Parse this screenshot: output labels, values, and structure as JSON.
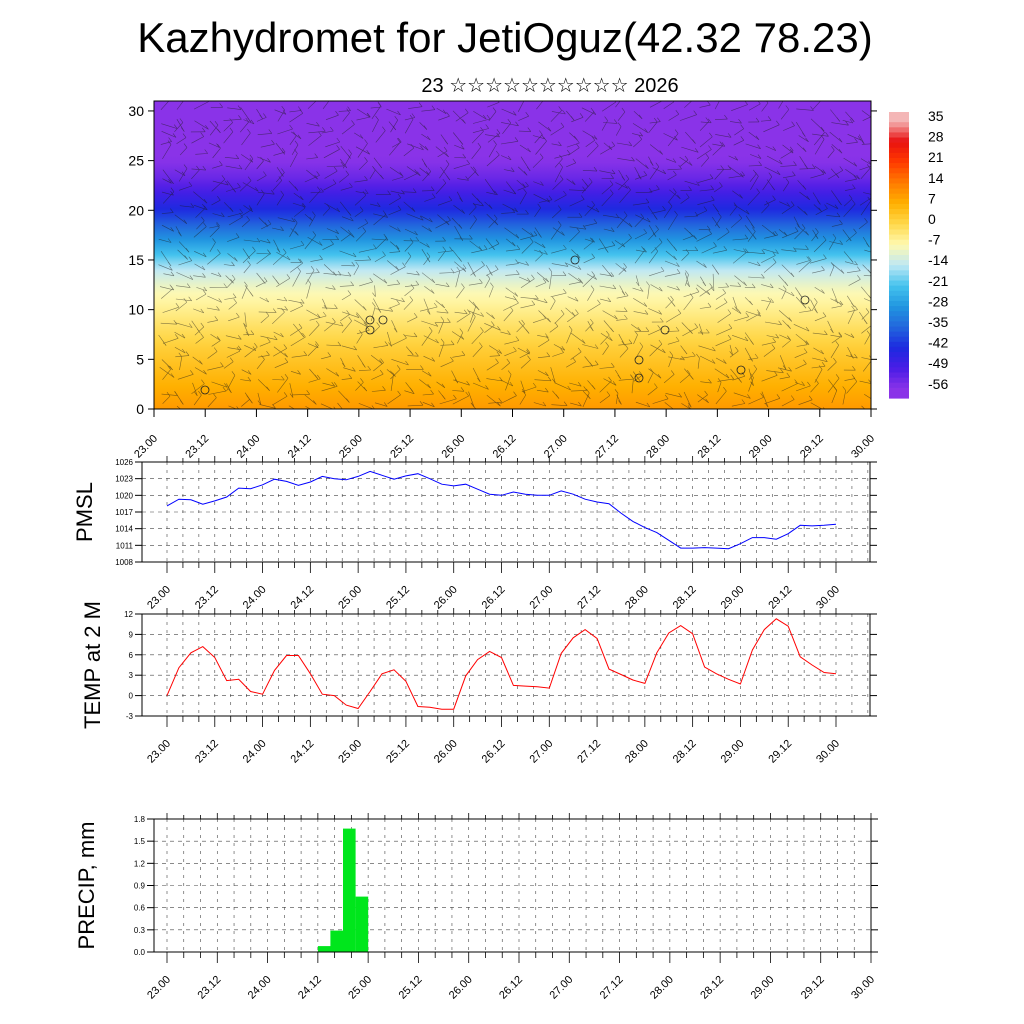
{
  "header": {
    "title": "Kazhydromet for JetiOguz(42.32 78.23)",
    "subtitle": "23 ☆☆☆☆☆☆☆☆☆☆ 2026"
  },
  "chart_data": [
    {
      "type": "heatmap",
      "name": "cross-section",
      "title": "",
      "xlabel": "",
      "ylabel": "",
      "x_tick_labels": [
        "23.00",
        "23.12",
        "24.00",
        "24.12",
        "25.00",
        "25.12",
        "26.00",
        "26.12",
        "27.00",
        "27.12",
        "28.00",
        "28.12",
        "29.00",
        "29.12",
        "30.00"
      ],
      "y_ticks": [
        0,
        5,
        10,
        15,
        20,
        25,
        30
      ],
      "ylim": [
        0,
        31
      ],
      "colorbar": {
        "labels": [
          "35",
          "28",
          "21",
          "14",
          "7",
          "0",
          "-7",
          "-14",
          "-21",
          "-28",
          "-35",
          "-42",
          "-49",
          "-56"
        ],
        "stops": [
          35,
          28,
          21,
          14,
          7,
          0,
          -7,
          -14,
          -21,
          -28,
          -35,
          -42,
          -49,
          -56
        ],
        "colors": [
          "#f4b6b6",
          "#e81010",
          "#ff3a00",
          "#ff7a00",
          "#ffb000",
          "#ffd84a",
          "#fff9b0",
          "#bfe8f4",
          "#44c3ee",
          "#2196e0",
          "#2266dd",
          "#1c2ae0",
          "#4a1ce6",
          "#8a33e8"
        ]
      },
      "temperature_profile": {
        "levels": [
          0,
          3,
          6,
          9,
          12,
          14,
          17,
          20,
          23,
          26,
          31
        ],
        "values": [
          10,
          6,
          2,
          -3,
          -8,
          -14,
          -28,
          -42,
          -52,
          -58,
          -58
        ]
      },
      "circle_markers_x": [
        "23.12",
        "25.00",
        "25.00",
        "25.12",
        "27.00",
        "27.12",
        "27.12",
        "28.00",
        "28.12",
        "29.12"
      ]
    },
    {
      "type": "line",
      "name": "PMSL",
      "ylabel": "PMSL",
      "x_tick_labels": [
        "23.00",
        "23.12",
        "24.00",
        "24.12",
        "25.00",
        "25.12",
        "26.00",
        "26.12",
        "27.00",
        "27.12",
        "28.00",
        "28.12",
        "29.00",
        "29.12",
        "30.00"
      ],
      "y_ticks": [
        1008,
        1011,
        1014,
        1017,
        1020,
        1023,
        1026
      ],
      "ylim": [
        1008,
        1026
      ],
      "series": [
        {
          "name": "PMSL",
          "color": "#0000ff",
          "values": [
            1018.1,
            1019.3,
            1019.2,
            1018.4,
            1019.0,
            1019.7,
            1021.3,
            1021.2,
            1021.9,
            1022.9,
            1022.5,
            1021.8,
            1022.4,
            1023.4,
            1023.0,
            1022.8,
            1023.4,
            1024.3,
            1023.6,
            1022.9,
            1023.5,
            1023.9,
            1023.0,
            1022.0,
            1021.7,
            1022.0,
            1021.1,
            1020.2,
            1020.0,
            1020.6,
            1020.2,
            1020.0,
            1020.0,
            1020.8,
            1020.2,
            1019.3,
            1018.8,
            1018.5,
            1016.8,
            1015.3,
            1014.2,
            1013.3,
            1011.9,
            1010.5,
            1010.5,
            1010.6,
            1010.5,
            1010.4,
            1011.3,
            1012.4,
            1012.4,
            1012.1,
            1013.1,
            1014.6,
            1014.5,
            1014.6,
            1014.8
          ]
        }
      ]
    },
    {
      "type": "line",
      "name": "TEMP at 2 M",
      "ylabel": "TEMP at 2 M",
      "x_tick_labels": [
        "23.00",
        "23.12",
        "24.00",
        "24.12",
        "25.00",
        "25.12",
        "26.00",
        "26.12",
        "27.00",
        "27.12",
        "28.00",
        "28.12",
        "29.00",
        "29.12",
        "30.00"
      ],
      "y_ticks": [
        -3,
        0,
        3,
        6,
        9,
        12
      ],
      "ylim": [
        -3,
        12
      ],
      "series": [
        {
          "name": "TEMP at 2 M",
          "color": "#ff0000",
          "values": [
            0.0,
            4.1,
            6.3,
            7.2,
            5.6,
            2.2,
            2.4,
            0.6,
            0.2,
            3.7,
            5.9,
            5.9,
            3.2,
            0.2,
            0.0,
            -1.4,
            -1.9,
            0.6,
            3.2,
            3.8,
            2.1,
            -1.6,
            -1.7,
            -2.0,
            -2.0,
            2.9,
            5.3,
            6.5,
            5.6,
            1.5,
            1.4,
            1.3,
            1.1,
            6.2,
            8.5,
            9.7,
            8.4,
            3.9,
            3.1,
            2.3,
            1.8,
            6.3,
            9.2,
            10.3,
            9.1,
            4.2,
            3.2,
            2.4,
            1.7,
            6.7,
            9.7,
            11.3,
            10.2,
            5.7,
            4.5,
            3.4,
            3.2
          ]
        }
      ]
    },
    {
      "type": "bar",
      "name": "PRECIP, mm",
      "ylabel": "PRECIP, mm",
      "x_tick_labels": [
        "23.00",
        "23.12",
        "24.00",
        "24.12",
        "25.00",
        "25.12",
        "26.00",
        "26.12",
        "27.00",
        "27.12",
        "28.00",
        "28.12",
        "29.00",
        "29.12",
        "30.00"
      ],
      "y_ticks": [
        0.0,
        0.3,
        0.6,
        0.9,
        1.2,
        1.5,
        1.8
      ],
      "y_tick_labels": [
        "0.0",
        "0.3",
        "0.6",
        "0.9",
        "1.2",
        "1.5",
        "1.8"
      ],
      "ylim": [
        0,
        1.8
      ],
      "bar_color": "#00e61c",
      "bars": [
        {
          "x_hours": 39,
          "value": 0.08
        },
        {
          "x_hours": 42,
          "value": 0.29
        },
        {
          "x_hours": 45,
          "value": 1.67
        },
        {
          "x_hours": 48,
          "value": 0.75
        }
      ]
    }
  ]
}
